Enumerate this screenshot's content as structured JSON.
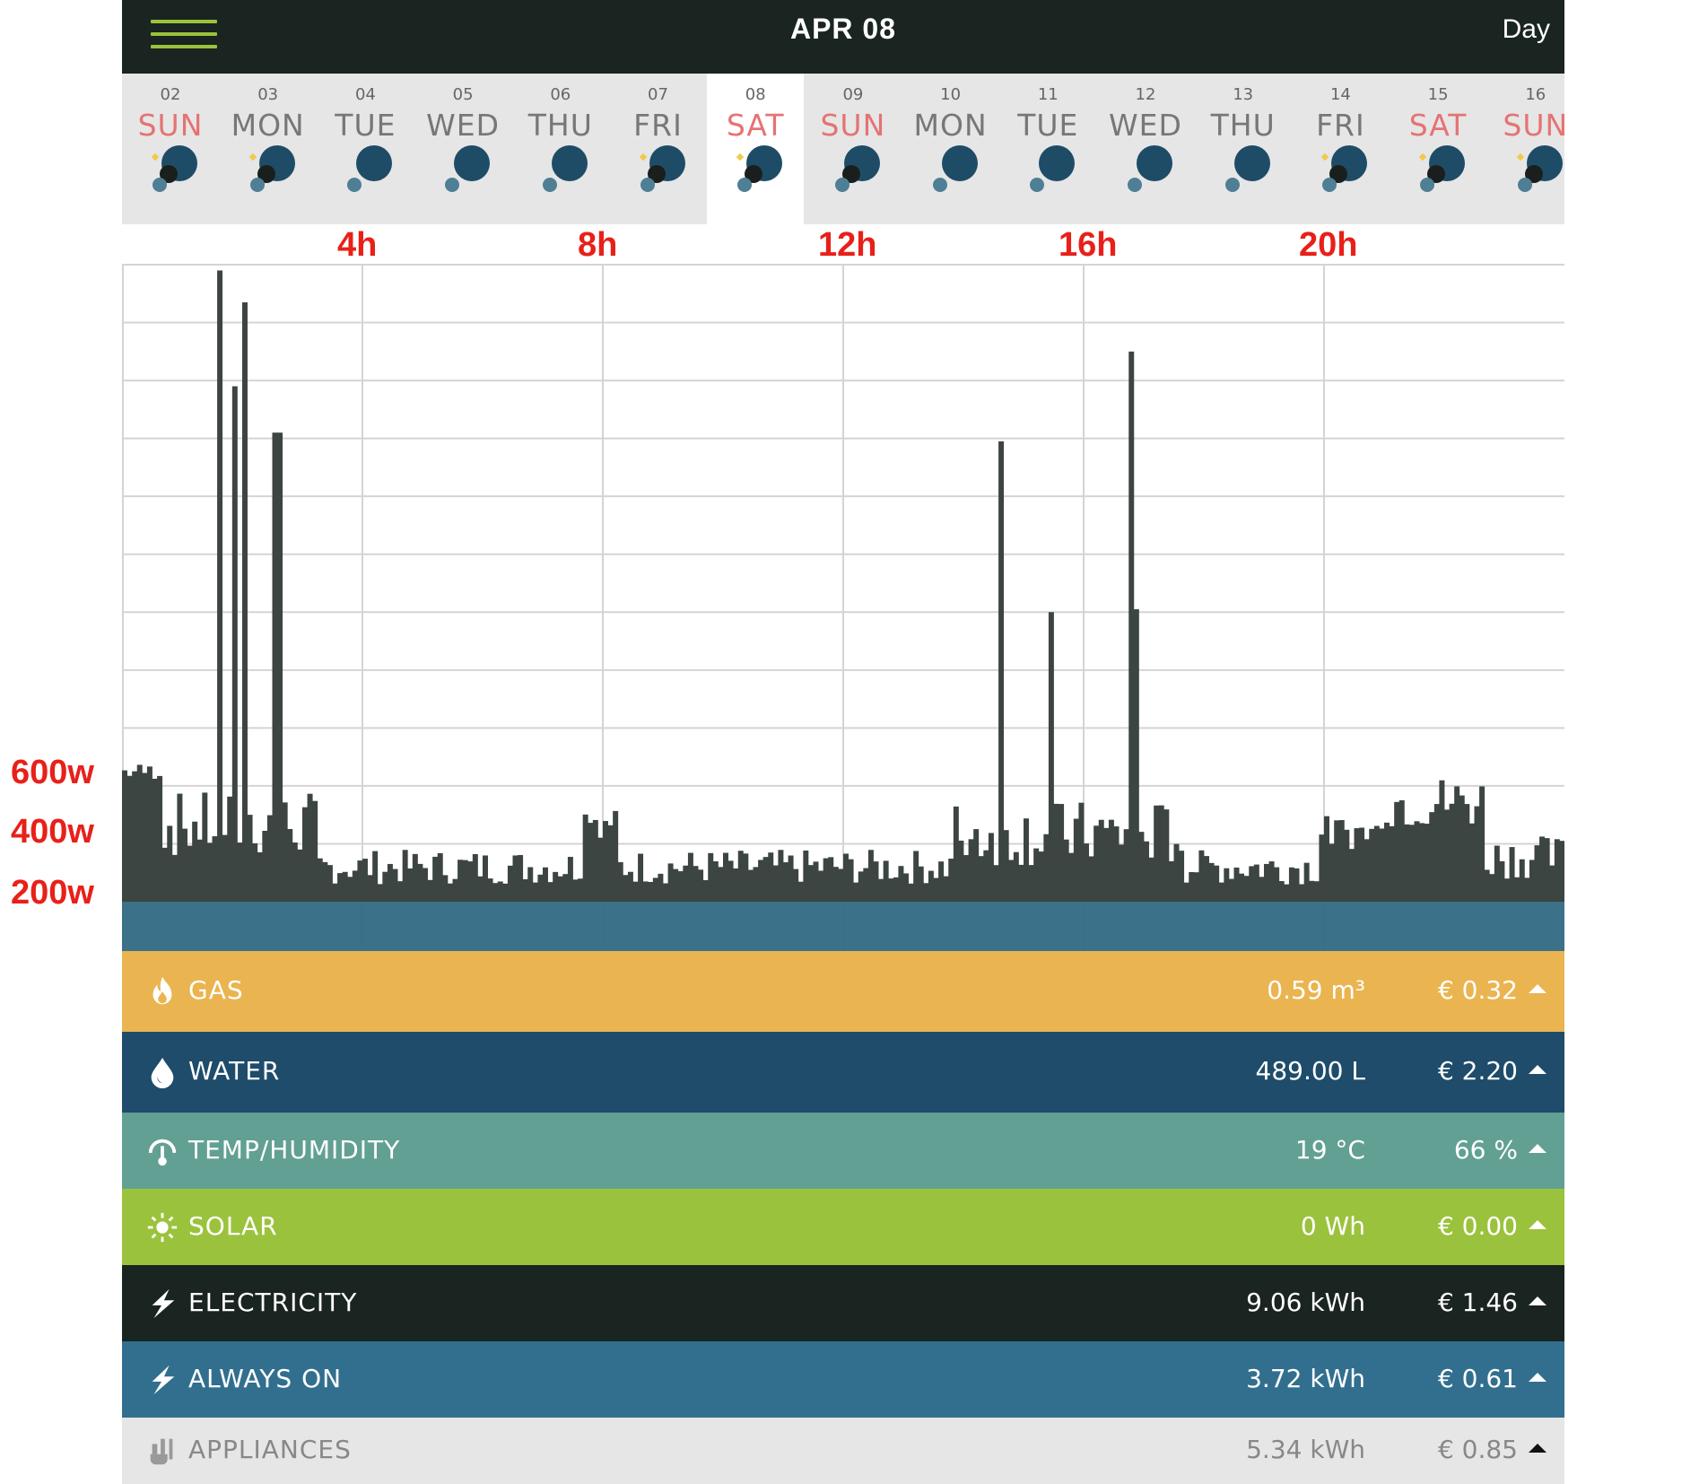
{
  "header": {
    "title": "APR 08",
    "period": "Day"
  },
  "days": [
    {
      "num": "02",
      "name": "SUN",
      "weekend": true,
      "weather": "partly-cloudy-night-icon"
    },
    {
      "num": "03",
      "name": "MON",
      "weekend": false,
      "weather": "partly-cloudy-night-icon"
    },
    {
      "num": "04",
      "name": "TUE",
      "weekend": false,
      "weather": "cloud-icon"
    },
    {
      "num": "05",
      "name": "WED",
      "weekend": false,
      "weather": "cloud-icon"
    },
    {
      "num": "06",
      "name": "THU",
      "weekend": false,
      "weather": "cloud-icon"
    },
    {
      "num": "07",
      "name": "FRI",
      "weekend": false,
      "weather": "partly-cloudy-night-icon"
    },
    {
      "num": "08",
      "name": "SAT",
      "weekend": true,
      "weather": "partly-cloudy-night-icon",
      "selected": true
    },
    {
      "num": "09",
      "name": "SUN",
      "weekend": true,
      "weather": "rain-night-icon"
    },
    {
      "num": "10",
      "name": "MON",
      "weekend": false,
      "weather": "cloud-icon"
    },
    {
      "num": "11",
      "name": "TUE",
      "weekend": false,
      "weather": "cloud-icon"
    },
    {
      "num": "12",
      "name": "WED",
      "weekend": false,
      "weather": "cloud-icon"
    },
    {
      "num": "13",
      "name": "THU",
      "weekend": false,
      "weather": "cloud-icon"
    },
    {
      "num": "14",
      "name": "FRI",
      "weekend": false,
      "weather": "partly-cloudy-night-icon"
    },
    {
      "num": "15",
      "name": "SAT",
      "weekend": true,
      "weather": "partly-cloudy-night-icon"
    },
    {
      "num": "16",
      "name": "SUN",
      "weekend": true,
      "weather": "partly-cloudy-night-icon"
    }
  ],
  "chart_data": {
    "type": "bar",
    "x_tick_labels": [
      "4h",
      "8h",
      "12h",
      "16h",
      "20h"
    ],
    "y_tick_labels": [
      "600w",
      "400w",
      "200w"
    ],
    "ylim": [
      0,
      2200
    ],
    "ylabel_unit": "w",
    "bar_color": "#3c4541",
    "base_band_color": "#326a83",
    "peaks": [
      {
        "hour": 1.55,
        "value": 2180
      },
      {
        "hour": 2.0,
        "value": 2070
      },
      {
        "hour": 1.85,
        "value": 1780
      },
      {
        "hour": 2.55,
        "value": 1620
      },
      {
        "hour": 14.55,
        "value": 1590
      },
      {
        "hour": 16.75,
        "value": 1900
      },
      {
        "hour": 15.45,
        "value": 1000
      },
      {
        "hour": 16.85,
        "value": 1010
      }
    ],
    "baseline_value": 60
  },
  "categories": [
    {
      "key": "gas",
      "label": "GAS",
      "amount": "0.59 m³",
      "cost": "€ 0.32",
      "icon": "flame-icon"
    },
    {
      "key": "water",
      "label": "WATER",
      "amount": "489.00 L",
      "cost": "€ 2.20",
      "icon": "water-drop-icon"
    },
    {
      "key": "temp",
      "label": "TEMP/HUMIDITY",
      "amount": "19 °C",
      "cost": "66 %",
      "icon": "thermometer-icon"
    },
    {
      "key": "solar",
      "label": "SOLAR",
      "amount": "0 Wh",
      "cost": "€ 0.00",
      "icon": "sun-icon"
    },
    {
      "key": "electricity",
      "label": "ELECTRICITY",
      "amount": "9.06 kWh",
      "cost": "€ 1.46",
      "icon": "lightning-icon"
    },
    {
      "key": "always_on",
      "label": "ALWAYS ON",
      "amount": "3.72 kWh",
      "cost": "€ 0.61",
      "icon": "lightning-icon"
    },
    {
      "key": "appliances",
      "label": "APPLIANCES",
      "amount": "5.34 kWh",
      "cost": "€ 0.85",
      "icon": "plug-icon"
    }
  ],
  "colors": {
    "topbar": "#1a2420",
    "accent": "#9bc23c",
    "weekend": "#e57373",
    "annotation": "#e8201a",
    "gas": "#eab450",
    "water": "#1e4c6a",
    "temp": "#62a093",
    "solar": "#9bc23c",
    "electricity": "#1a2420",
    "always_on": "#326f8e",
    "appliances": "#e6e6e6"
  }
}
